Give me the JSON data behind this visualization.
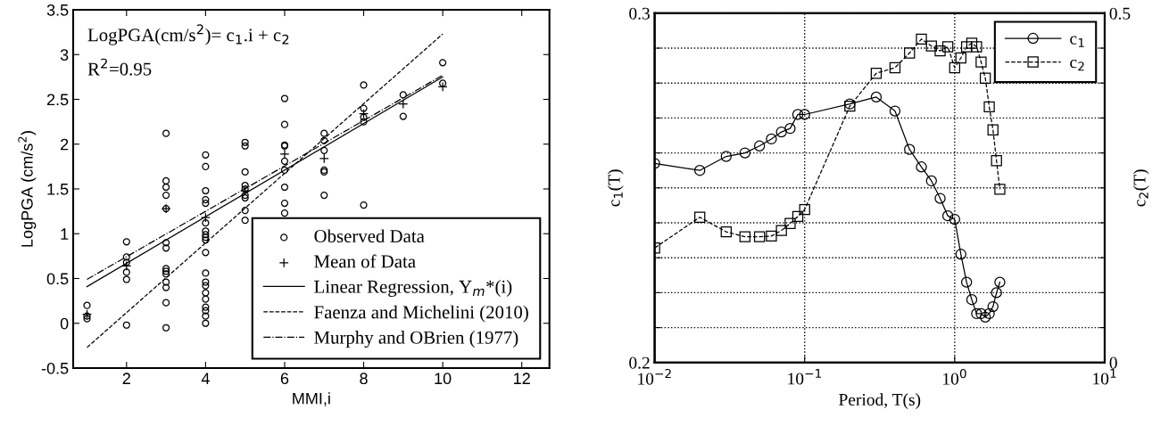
{
  "chart_data": [
    {
      "type": "scatter",
      "xlabel": "MMI,i",
      "ylabel": "LogPGA (cm/s$^{2}$)",
      "annotations": [
        "LogPGA(cm/s$^{2}$)= c$_{1}$.i + c$_{2}$",
        "R$^{2}$=0.95"
      ],
      "xlim": [
        0.65,
        12.7
      ],
      "xticks": [
        2,
        4,
        6,
        8,
        10,
        12
      ],
      "ylim": [
        -0.5,
        3.5
      ],
      "yticks": [
        -0.5,
        0,
        0.5,
        1,
        1.5,
        2,
        2.5,
        3,
        3.5
      ],
      "grid": false,
      "legend": "bottom right",
      "series": [
        {
          "name": "Observed Data",
          "type": "scatter",
          "marker": "circle",
          "color": "#000000",
          "x": [
            1,
            1,
            1,
            2,
            2,
            2,
            2,
            2,
            2,
            3,
            3,
            3,
            3,
            3,
            3,
            3,
            3,
            3,
            3,
            3,
            3,
            3,
            3,
            4,
            4,
            4,
            4,
            4,
            4,
            4,
            4,
            4,
            4,
            4,
            4,
            4,
            4,
            4,
            4,
            4,
            4,
            4,
            4,
            5,
            5,
            5,
            5,
            5,
            5,
            5,
            5,
            5,
            6,
            6,
            6,
            6,
            6,
            6,
            6,
            6,
            6,
            7,
            7,
            7,
            7,
            7,
            7,
            8,
            8,
            8,
            8,
            8,
            9,
            9,
            10,
            10
          ],
          "values": [
            0.2,
            0.08,
            0.05,
            0.91,
            0.74,
            0.68,
            0.57,
            0.49,
            -0.02,
            2.12,
            1.59,
            1.52,
            1.43,
            1.28,
            0.9,
            0.84,
            0.61,
            0.58,
            0.55,
            0.46,
            0.4,
            0.23,
            -0.05,
            1.88,
            1.75,
            1.48,
            1.38,
            1.34,
            1.12,
            1.03,
            0.99,
            0.96,
            0.93,
            0.79,
            0.56,
            0.46,
            0.42,
            0.34,
            0.27,
            0.18,
            0.14,
            0.08,
            0.0,
            2.02,
            1.98,
            1.69,
            1.54,
            1.5,
            1.43,
            1.4,
            1.26,
            1.15,
            2.51,
            2.22,
            1.99,
            1.98,
            1.81,
            1.71,
            1.52,
            1.34,
            1.23,
            2.12,
            2.04,
            1.93,
            1.71,
            1.69,
            1.43,
            2.66,
            2.4,
            2.3,
            2.25,
            1.32,
            2.55,
            2.31,
            2.91,
            2.68
          ]
        },
        {
          "name": "Mean of Data",
          "type": "scatter",
          "marker": "cross",
          "color": "#000000",
          "x": [
            1,
            2,
            3,
            4,
            5,
            6,
            7,
            8,
            9,
            10
          ],
          "values": [
            0.1,
            0.64,
            1.28,
            1.18,
            1.48,
            1.89,
            1.84,
            2.34,
            2.45,
            2.64
          ]
        },
        {
          "name": "Linear Regression, Y$_{m}$*(i)",
          "type": "line",
          "line_style": "solid",
          "color": "#000000",
          "x": [
            1,
            10
          ],
          "values": [
            0.41,
            2.75
          ]
        },
        {
          "name": "Faenza and Michelini (2010)",
          "type": "line",
          "line_style": "dashed",
          "color": "#000000",
          "x": [
            1,
            10
          ],
          "values": [
            -0.27,
            3.23
          ]
        },
        {
          "name": "Murphy and OBrien (1977)",
          "type": "line",
          "line_style": "dashdot",
          "color": "#000000",
          "x": [
            1,
            10
          ],
          "values": [
            0.49,
            2.77
          ]
        }
      ]
    },
    {
      "type": "line",
      "xlabel": "Period, T(s)",
      "ylabel": "c$_{1}$(T)",
      "y2label": "c$_{2}$(T)",
      "log": "x",
      "xlim": [
        0.01,
        10
      ],
      "xticks": [
        {
          "value": 0.01,
          "label": "10$^{−2}$"
        },
        {
          "value": 0.1,
          "label": "10$^{−1}$"
        },
        {
          "value": 1,
          "label": "10$^{0}$"
        },
        {
          "value": 10,
          "label": "10$^{1}$"
        }
      ],
      "ylim": [
        0.2,
        0.3
      ],
      "yticks": [
        0.2,
        {
          "value": 0.21,
          "label": null
        },
        {
          "value": 0.22,
          "label": null
        },
        {
          "value": 0.23,
          "label": null
        },
        {
          "value": 0.24,
          "label": null
        },
        {
          "value": 0.25,
          "label": null
        },
        {
          "value": 0.26,
          "label": null
        },
        {
          "value": 0.27,
          "label": null
        },
        {
          "value": 0.28,
          "label": null
        },
        {
          "value": 0.29,
          "label": null
        },
        0.3
      ],
      "y2lim": [
        0,
        0.5
      ],
      "y2ticks": [
        0,
        {
          "value": 0.05,
          "label": null
        },
        {
          "value": 0.1,
          "label": null
        },
        {
          "value": 0.15,
          "label": null
        },
        {
          "value": 0.2,
          "label": null
        },
        {
          "value": 0.25,
          "label": null
        },
        {
          "value": 0.3,
          "label": null
        },
        {
          "value": 0.35,
          "label": null
        },
        {
          "value": 0.4,
          "label": null
        },
        {
          "value": 0.45,
          "label": null
        },
        0.5
      ],
      "grid": true,
      "legend": "top right",
      "x": [
        0.01,
        0.02,
        0.03,
        0.04,
        0.05,
        0.06,
        0.07,
        0.08,
        0.09,
        0.1,
        0.2,
        0.3,
        0.4,
        0.5,
        0.6,
        0.7,
        0.8,
        0.9,
        1.0,
        1.1,
        1.2,
        1.3,
        1.4,
        1.5,
        1.6,
        1.7,
        1.8,
        1.9,
        2.0
      ],
      "series": [
        {
          "name": "c$_{1}$",
          "marker": "circle",
          "line_style": "solid",
          "color": "#000000",
          "values": [
            0.257,
            0.255,
            0.259,
            0.26,
            0.262,
            0.264,
            0.266,
            0.267,
            0.271,
            0.271,
            0.274,
            0.276,
            0.272,
            0.261,
            0.256,
            0.252,
            0.247,
            0.242,
            0.241,
            0.231,
            0.223,
            0.218,
            0.214,
            0.214,
            0.213,
            0.214,
            0.216,
            0.22,
            0.223
          ]
        },
        {
          "name": "c$_{2}$",
          "marker": "square",
          "line_style": "dashed",
          "axis": "y2",
          "color": "#000000",
          "values": [
            0.164,
            0.208,
            0.187,
            0.18,
            0.18,
            0.181,
            0.189,
            0.199,
            0.209,
            0.219,
            0.367,
            0.414,
            0.422,
            0.443,
            0.463,
            0.453,
            0.446,
            0.452,
            0.422,
            0.436,
            0.452,
            0.457,
            0.452,
            0.43,
            0.407,
            0.366,
            0.333,
            0.289,
            0.248
          ]
        }
      ]
    }
  ]
}
